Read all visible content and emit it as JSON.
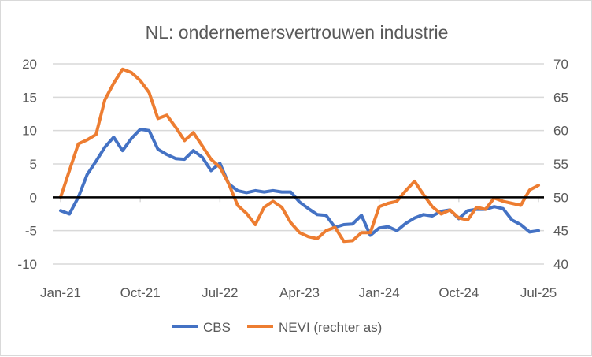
{
  "chart_data": {
    "type": "line",
    "title": "NL: ondernemersvertrouwen industrie",
    "xlabel": "",
    "ylabel": "",
    "x": [
      "Jan-21",
      "Feb-21",
      "Mar-21",
      "Apr-21",
      "May-21",
      "Jun-21",
      "Jul-21",
      "Aug-21",
      "Sep-21",
      "Oct-21",
      "Nov-21",
      "Dec-21",
      "Jan-22",
      "Feb-22",
      "Mar-22",
      "Apr-22",
      "May-22",
      "Jun-22",
      "Jul-22",
      "Aug-22",
      "Sep-22",
      "Oct-22",
      "Nov-22",
      "Dec-22",
      "Jan-23",
      "Feb-23",
      "Mar-23",
      "Apr-23",
      "May-23",
      "Jun-23",
      "Jul-23",
      "Aug-23",
      "Sep-23",
      "Oct-23",
      "Nov-23",
      "Dec-23",
      "Jan-24",
      "Feb-24",
      "Mar-24",
      "Apr-24",
      "May-24",
      "Jun-24",
      "Jul-24",
      "Aug-24",
      "Sep-24",
      "Oct-24",
      "Nov-24",
      "Dec-24",
      "Jan-25",
      "Feb-25",
      "Mar-25",
      "Apr-25",
      "May-25",
      "Jun-25",
      "Jul-25"
    ],
    "x_tick_labels": [
      "Jan-21",
      "Oct-21",
      "Jul-22",
      "Apr-23",
      "Jan-24",
      "Oct-24",
      "Jul-25"
    ],
    "ylim": [
      -10,
      20
    ],
    "y_ticks": [
      20,
      15,
      10,
      5,
      0,
      -5,
      -10
    ],
    "y2lim": [
      40,
      70
    ],
    "y2_ticks": [
      70,
      65,
      60,
      55,
      50,
      45,
      40
    ],
    "grid": true,
    "legend_position": "bottom",
    "series": [
      {
        "name": "CBS",
        "axis": "left",
        "color": "#4472c4",
        "values": [
          -2.0,
          -2.5,
          0.0,
          3.4,
          5.4,
          7.5,
          9.0,
          7.0,
          8.8,
          10.2,
          10.0,
          7.2,
          6.4,
          5.8,
          5.7,
          7.0,
          6.0,
          4.0,
          5.1,
          2.0,
          1.0,
          0.7,
          1.0,
          0.8,
          1.0,
          0.8,
          0.8,
          -0.7,
          -1.7,
          -2.6,
          -2.7,
          -4.5,
          -4.1,
          -4.0,
          -2.7,
          -5.7,
          -4.6,
          -4.4,
          -5.0,
          -3.9,
          -3.1,
          -2.6,
          -2.8,
          -2.1,
          -1.9,
          -3.2,
          -2.0,
          -1.8,
          -1.8,
          -1.4,
          -1.7,
          -3.4,
          -4.1,
          -5.2,
          -5.0
        ]
      },
      {
        "name": "NEVI (rechter as)",
        "axis": "right",
        "color": "#ed7d31",
        "values": [
          50.0,
          54.0,
          58.0,
          58.6,
          59.4,
          64.6,
          67.1,
          69.2,
          68.7,
          67.5,
          65.7,
          61.8,
          62.3,
          60.5,
          58.5,
          59.7,
          57.7,
          55.7,
          54.5,
          52.0,
          48.8,
          47.6,
          45.9,
          48.5,
          49.4,
          48.5,
          46.2,
          44.7,
          44.1,
          43.8,
          45.0,
          45.5,
          43.4,
          43.5,
          44.7,
          44.7,
          48.6,
          49.1,
          49.4,
          51.0,
          52.4,
          50.4,
          48.6,
          47.5,
          48.1,
          46.9,
          46.6,
          48.5,
          48.2,
          49.9,
          49.4,
          49.1,
          48.8,
          51.1,
          51.8
        ]
      }
    ]
  }
}
